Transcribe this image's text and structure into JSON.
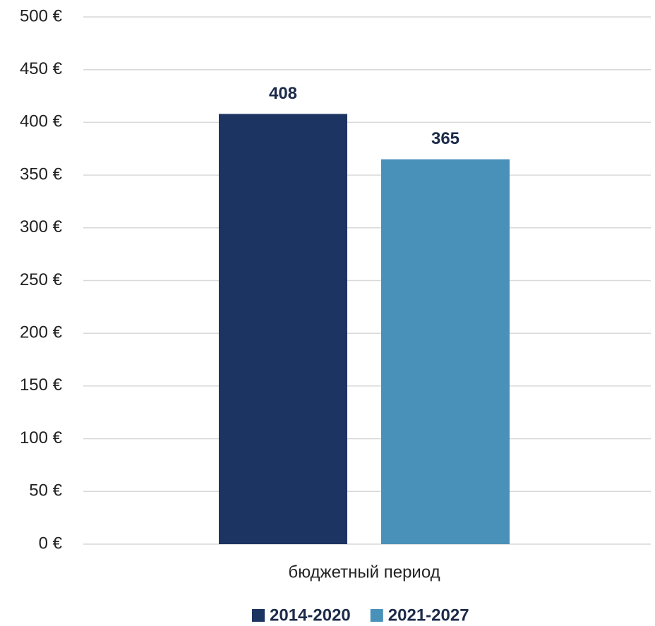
{
  "chart_data": {
    "type": "bar",
    "categories": [
      "бюджетный период"
    ],
    "series": [
      {
        "name": "2014-2020",
        "color": "#1c3461",
        "values": [
          408
        ]
      },
      {
        "name": "2021-2027",
        "color": "#4a91b9",
        "values": [
          365
        ]
      }
    ],
    "ylim": [
      0,
      500
    ],
    "yticks": [
      {
        "value": 0,
        "label": "0 €"
      },
      {
        "value": 50,
        "label": "50 €"
      },
      {
        "value": 100,
        "label": "100 €"
      },
      {
        "value": 150,
        "label": "150 €"
      },
      {
        "value": 200,
        "label": "200 €"
      },
      {
        "value": 250,
        "label": "250 €"
      },
      {
        "value": 300,
        "label": "300 €"
      },
      {
        "value": 350,
        "label": "350 €"
      },
      {
        "value": 400,
        "label": "400 €"
      },
      {
        "value": 450,
        "label": "450 €"
      },
      {
        "value": 500,
        "label": "500 €"
      }
    ],
    "grid": true,
    "legend": "bottom"
  }
}
